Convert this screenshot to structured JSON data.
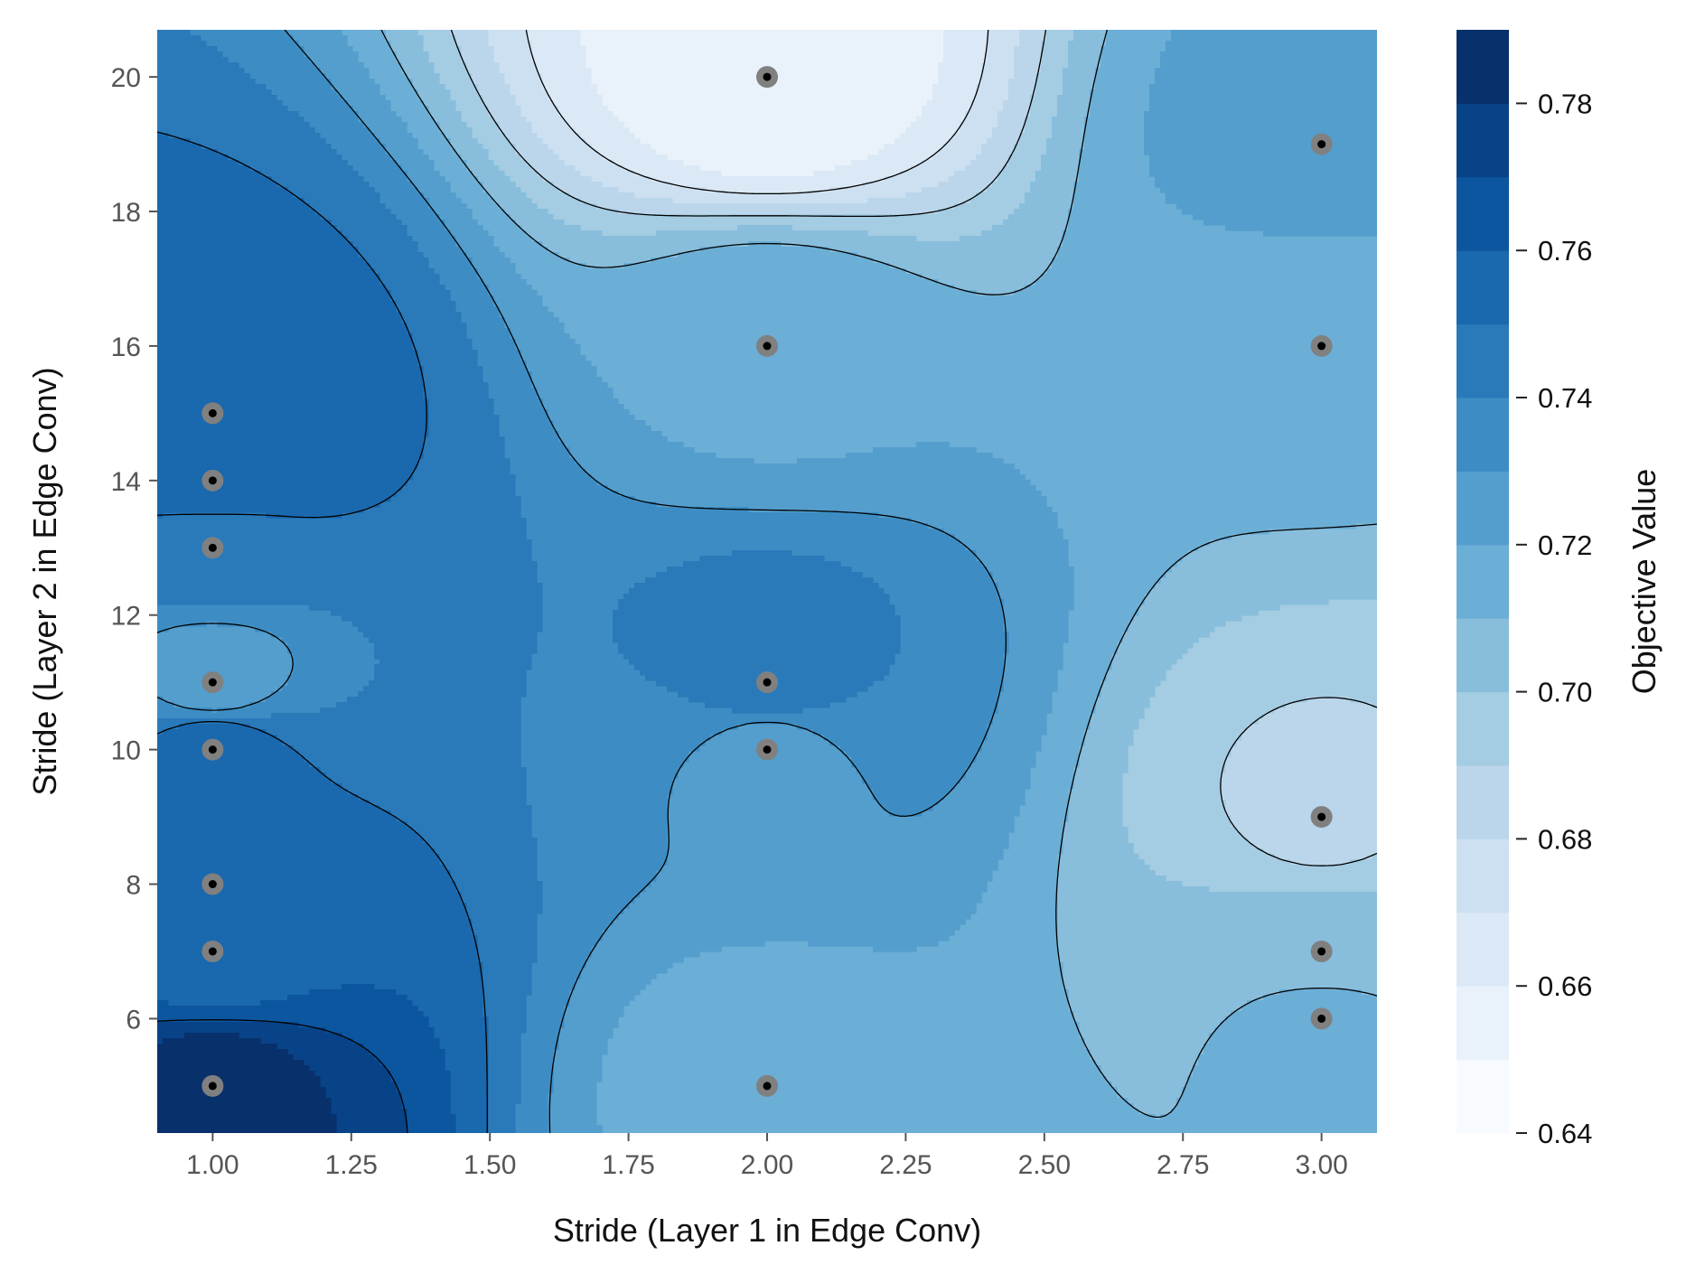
{
  "chart_data": {
    "type": "heatmap",
    "subtype": "contour",
    "title": "",
    "xlabel": "Stride (Layer 1 in Edge Conv)",
    "ylabel": "Stride (Layer 2 in Edge Conv)",
    "colorbar_label": "Objective Value",
    "xlim": [
      0.9,
      3.1
    ],
    "ylim": [
      4.3,
      20.7
    ],
    "x_ticks": [
      1.0,
      1.25,
      1.5,
      1.75,
      2.0,
      2.25,
      2.5,
      2.75,
      3.0
    ],
    "x_tick_labels": [
      "1.00",
      "1.25",
      "1.50",
      "1.75",
      "2.00",
      "2.25",
      "2.50",
      "2.75",
      "3.00"
    ],
    "y_ticks": [
      6,
      8,
      10,
      12,
      14,
      16,
      18,
      20
    ],
    "y_tick_labels": [
      "6",
      "8",
      "10",
      "12",
      "14",
      "16",
      "18",
      "20"
    ],
    "colorbar_range": [
      0.64,
      0.79
    ],
    "colorbar_ticks": [
      0.64,
      0.66,
      0.68,
      0.7,
      0.72,
      0.74,
      0.76,
      0.78
    ],
    "colorbar_tick_labels": [
      "0.64",
      "0.66",
      "0.68",
      "0.70",
      "0.72",
      "0.74",
      "0.76",
      "0.78"
    ],
    "colorbar_levels": [
      0.64,
      0.65,
      0.66,
      0.67,
      0.68,
      0.69,
      0.7,
      0.71,
      0.72,
      0.73,
      0.74,
      0.75,
      0.76,
      0.77,
      0.78,
      0.79
    ],
    "colormap": "Blues",
    "grid": false,
    "trials": [
      {
        "x": 1,
        "y": 5,
        "value": 0.785
      },
      {
        "x": 1,
        "y": 7,
        "value": 0.754
      },
      {
        "x": 1,
        "y": 8,
        "value": 0.754
      },
      {
        "x": 1,
        "y": 10,
        "value": 0.758
      },
      {
        "x": 1,
        "y": 11,
        "value": 0.722
      },
      {
        "x": 1,
        "y": 13,
        "value": 0.745
      },
      {
        "x": 1,
        "y": 14,
        "value": 0.755
      },
      {
        "x": 1,
        "y": 15,
        "value": 0.76
      },
      {
        "x": 2,
        "y": 5,
        "value": 0.715
      },
      {
        "x": 2,
        "y": 10,
        "value": 0.726
      },
      {
        "x": 2,
        "y": 11,
        "value": 0.747
      },
      {
        "x": 2,
        "y": 16,
        "value": 0.718
      },
      {
        "x": 2,
        "y": 20,
        "value": 0.652
      },
      {
        "x": 3,
        "y": 6,
        "value": 0.712
      },
      {
        "x": 3,
        "y": 7,
        "value": 0.706
      },
      {
        "x": 3,
        "y": 9,
        "value": 0.688
      },
      {
        "x": 3,
        "y": 16,
        "value": 0.712
      },
      {
        "x": 3,
        "y": 19,
        "value": 0.724
      }
    ]
  }
}
